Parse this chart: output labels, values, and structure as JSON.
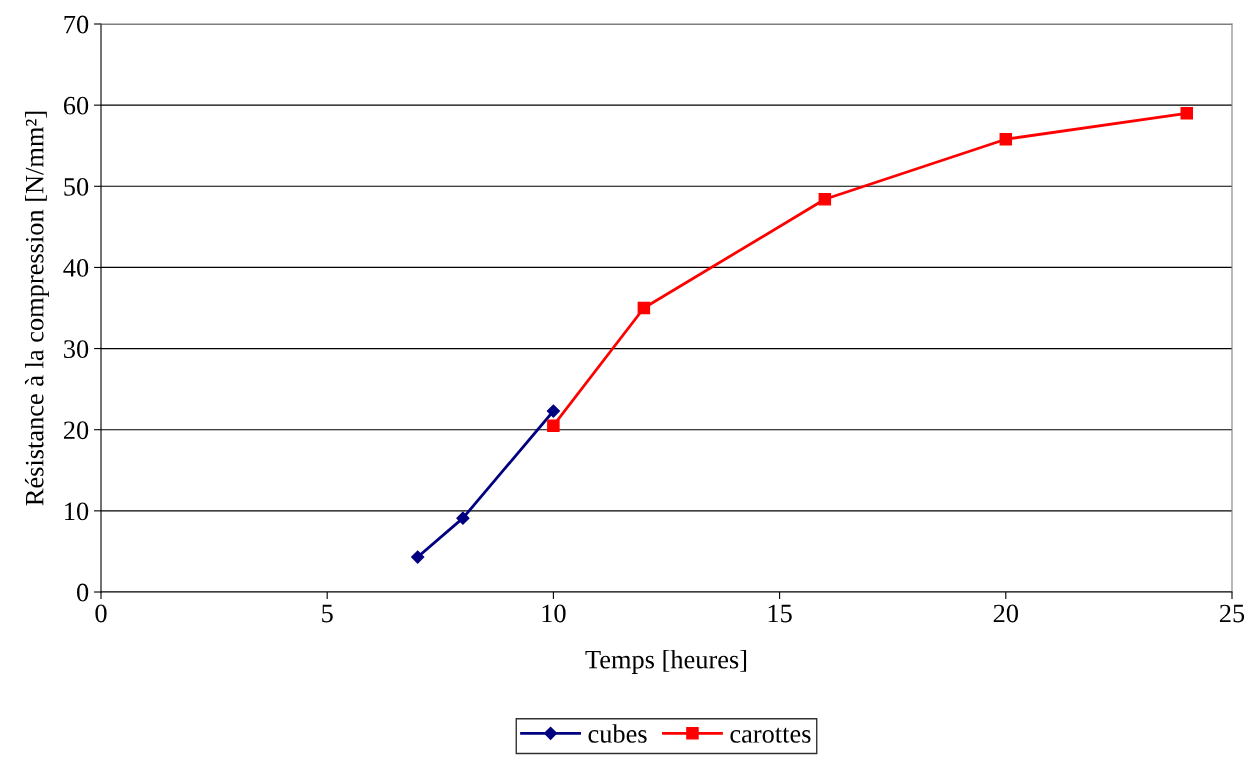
{
  "chart_data": {
    "type": "line",
    "xlabel": "Temps [heures]",
    "ylabel": "Résistance à la compression [N/mm²]",
    "xlim": [
      0,
      25
    ],
    "xticks": [
      0,
      5,
      10,
      15,
      20,
      25
    ],
    "ylim": [
      0,
      70
    ],
    "yticks": [
      0,
      10,
      20,
      30,
      40,
      50,
      60,
      70
    ],
    "grid": "y",
    "legend": "bottom",
    "line_style": "solid",
    "series": [
      {
        "name": "cubes",
        "color": "#000080",
        "marker": "diamond",
        "x": [
          7,
          8,
          10
        ],
        "values": [
          4.3,
          9.1,
          22.3
        ]
      },
      {
        "name": "carottes",
        "color": "#ff0000",
        "marker": "square",
        "x": [
          10,
          12,
          16,
          20,
          24
        ],
        "values": [
          20.5,
          35.0,
          48.4,
          55.8,
          59.0
        ]
      }
    ]
  }
}
